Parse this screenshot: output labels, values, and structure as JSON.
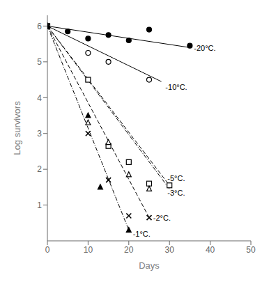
{
  "chart_data": {
    "type": "scatter",
    "xlabel": "Days",
    "ylabel": "Log survivors",
    "xlim": [
      0,
      50
    ],
    "ylim": [
      0,
      6.3
    ],
    "xticks": [
      0,
      10,
      20,
      30,
      40,
      50
    ],
    "yticks": [
      1,
      2,
      3,
      4,
      5,
      6
    ],
    "grid": false,
    "color": "black",
    "series": [
      {
        "marker": "circle",
        "line_style": "solid",
        "x": [
          0,
          5,
          10,
          15,
          20,
          25,
          35
        ],
        "values": [
          6.0,
          5.85,
          5.65,
          5.75,
          5.6,
          5.9,
          5.45
        ],
        "trend_x": [
          0,
          35
        ],
        "trend_y": [
          6.0,
          5.4
        ]
      },
      {
        "marker": "circle_open",
        "line_style": "solid",
        "x": [
          0,
          10,
          15,
          25
        ],
        "values": [
          6.0,
          5.25,
          5.0,
          4.5
        ],
        "trend_x": [
          0,
          28
        ],
        "trend_y": [
          6.0,
          4.45
        ]
      },
      {
        "marker": "square_open",
        "line_style": "dashed",
        "x": [
          0,
          10,
          15,
          20,
          25,
          30
        ],
        "values": [
          6.0,
          4.5,
          2.65,
          2.2,
          1.6,
          1.55
        ],
        "trend_x": [
          0,
          30
        ],
        "trend_y": [
          6.0,
          1.55
        ]
      },
      {
        "marker": "triangle_open",
        "line_style": "dashdot",
        "x": [
          0,
          10,
          15,
          20,
          25
        ],
        "values": [
          6.0,
          3.3,
          2.75,
          1.85,
          1.45
        ],
        "trend_x": [
          0,
          30
        ],
        "trend_y": [
          6.0,
          1.45
        ]
      },
      {
        "marker": "x",
        "line_style": "dashed",
        "x": [
          0,
          10,
          15,
          20,
          25
        ],
        "values": [
          6.0,
          3.0,
          1.7,
          0.7,
          0.65
        ],
        "trend_x": [
          0,
          25
        ],
        "trend_y": [
          6.0,
          0.65
        ]
      },
      {
        "marker": "triangle",
        "line_style": "dashdot",
        "x": [
          0,
          10,
          13,
          20
        ],
        "values": [
          6.0,
          3.5,
          1.5,
          0.3
        ],
        "trend_x": [
          0,
          20
        ],
        "trend_y": [
          6.0,
          0.3
        ]
      }
    ],
    "annotations": [
      {
        "text": "-20°C.",
        "x": 36,
        "y": 5.38
      },
      {
        "text": "-10°C.",
        "x": 29,
        "y": 4.3
      },
      {
        "text": "-5°C.",
        "x": 29.5,
        "y": 1.75
      },
      {
        "text": "-3°C.",
        "x": 29.5,
        "y": 1.35
      },
      {
        "text": "-2°C.",
        "x": 26,
        "y": 0.65
      },
      {
        "text": "-1°C.",
        "x": 21,
        "y": 0.2
      }
    ]
  }
}
